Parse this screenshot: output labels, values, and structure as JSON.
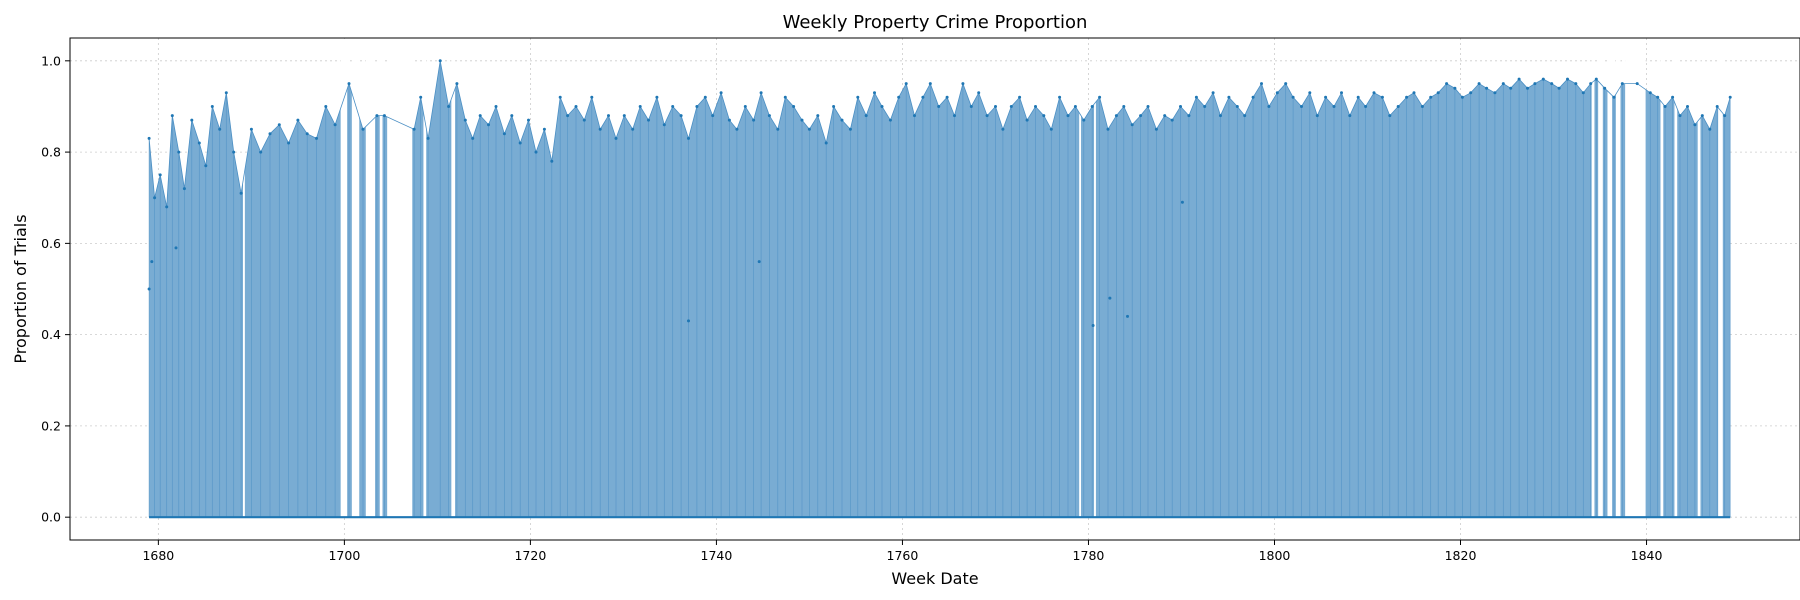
{
  "chart_data": {
    "type": "area",
    "title": "Weekly Property Crime Proportion",
    "xlabel": "Week Date",
    "ylabel": "Proportion of Trials",
    "xlim": [
      1670.5,
      1856.5
    ],
    "ylim": [
      -0.05,
      1.05
    ],
    "xticks": [
      "1680",
      "1700",
      "1720",
      "1740",
      "1760",
      "1780",
      "1800",
      "1820",
      "1840"
    ],
    "yticks": [
      "0.0",
      "0.2",
      "0.4",
      "0.6",
      "0.8",
      "1.0"
    ],
    "grid": true,
    "colors": {
      "fill": "#79acd3",
      "line": "#4b8fc4",
      "marker": "#1f77b4"
    },
    "series": [
      {
        "x": [
          1679.0,
          1679.6,
          1680.2,
          1680.9,
          1681.5,
          1682.2,
          1682.8,
          1683.6,
          1684.4,
          1685.1,
          1685.8,
          1686.6,
          1687.3,
          1688.1,
          1688.9,
          1690.0,
          1691.0,
          1692.0,
          1693.0,
          1694.0,
          1695.0,
          1696.0,
          1697.0,
          1698.0,
          1699.0,
          1700.5,
          1702.0,
          1703.5,
          1704.3,
          1707.5,
          1708.2,
          1709.0,
          1710.3,
          1711.2,
          1712.1,
          1713.0,
          1713.8,
          1714.6,
          1715.5,
          1716.3,
          1717.2,
          1718.0,
          1718.9,
          1719.8,
          1720.6,
          1721.5,
          1722.3,
          1723.2,
          1724.0,
          1724.9,
          1725.8,
          1726.6,
          1727.5,
          1728.4,
          1729.2,
          1730.1,
          1731.0,
          1731.8,
          1732.7,
          1733.6,
          1734.4,
          1735.3,
          1736.2,
          1737.0,
          1737.9,
          1738.8,
          1739.6,
          1740.5,
          1741.4,
          1742.2,
          1743.1,
          1744.0,
          1744.8,
          1745.7,
          1746.6,
          1747.4,
          1748.3,
          1749.2,
          1750.0,
          1750.9,
          1751.8,
          1752.6,
          1753.5,
          1754.4,
          1755.2,
          1756.1,
          1757.0,
          1757.8,
          1758.7,
          1759.6,
          1760.4,
          1761.3,
          1762.2,
          1763.0,
          1763.9,
          1764.8,
          1765.6,
          1766.5,
          1767.4,
          1768.2,
          1769.1,
          1770.0,
          1770.8,
          1771.7,
          1772.6,
          1773.4,
          1774.3,
          1775.2,
          1776.0,
          1776.9,
          1777.8,
          1778.6,
          1779.5,
          1780.4,
          1781.2,
          1782.1,
          1783.0,
          1783.8,
          1784.7,
          1785.6,
          1786.4,
          1787.3,
          1788.2,
          1789.0,
          1789.9,
          1790.8,
          1791.6,
          1792.5,
          1793.4,
          1794.2,
          1795.1,
          1796.0,
          1796.8,
          1797.7,
          1798.6,
          1799.4,
          1800.3,
          1801.2,
          1802.0,
          1802.9,
          1803.8,
          1804.6,
          1805.5,
          1806.4,
          1807.2,
          1808.1,
          1809.0,
          1809.8,
          1810.7,
          1811.6,
          1812.4,
          1813.3,
          1814.2,
          1815.0,
          1815.9,
          1816.8,
          1817.6,
          1818.5,
          1819.4,
          1820.2,
          1821.1,
          1822.0,
          1822.8,
          1823.7,
          1824.6,
          1825.4,
          1826.3,
          1827.2,
          1828.0,
          1828.9,
          1829.8,
          1830.6,
          1831.5,
          1832.4,
          1833.2,
          1834.0,
          1834.6,
          1835.5,
          1836.5,
          1837.4,
          1839.0,
          1840.4,
          1841.2,
          1842.0,
          1842.8,
          1843.6,
          1844.4,
          1845.2,
          1846.0,
          1846.8,
          1847.6,
          1848.4,
          1849.0
        ],
        "y": [
          0.83,
          0.7,
          0.75,
          0.68,
          0.88,
          0.8,
          0.72,
          0.87,
          0.82,
          0.77,
          0.9,
          0.85,
          0.93,
          0.8,
          0.71,
          0.85,
          0.8,
          0.84,
          0.86,
          0.82,
          0.87,
          0.84,
          0.83,
          0.9,
          0.86,
          0.95,
          0.85,
          0.88,
          0.88,
          0.85,
          0.92,
          0.83,
          1.0,
          0.9,
          0.95,
          0.87,
          0.83,
          0.88,
          0.86,
          0.9,
          0.84,
          0.88,
          0.82,
          0.87,
          0.8,
          0.85,
          0.78,
          0.92,
          0.88,
          0.9,
          0.87,
          0.92,
          0.85,
          0.88,
          0.83,
          0.88,
          0.85,
          0.9,
          0.87,
          0.92,
          0.86,
          0.9,
          0.88,
          0.83,
          0.9,
          0.92,
          0.88,
          0.93,
          0.87,
          0.85,
          0.9,
          0.87,
          0.93,
          0.88,
          0.85,
          0.92,
          0.9,
          0.87,
          0.85,
          0.88,
          0.82,
          0.9,
          0.87,
          0.85,
          0.92,
          0.88,
          0.93,
          0.9,
          0.87,
          0.92,
          0.95,
          0.88,
          0.92,
          0.95,
          0.9,
          0.92,
          0.88,
          0.95,
          0.9,
          0.93,
          0.88,
          0.9,
          0.85,
          0.9,
          0.92,
          0.87,
          0.9,
          0.88,
          0.85,
          0.92,
          0.88,
          0.9,
          0.87,
          0.9,
          0.92,
          0.85,
          0.88,
          0.9,
          0.86,
          0.88,
          0.9,
          0.85,
          0.88,
          0.87,
          0.9,
          0.88,
          0.92,
          0.9,
          0.93,
          0.88,
          0.92,
          0.9,
          0.88,
          0.92,
          0.95,
          0.9,
          0.93,
          0.95,
          0.92,
          0.9,
          0.93,
          0.88,
          0.92,
          0.9,
          0.93,
          0.88,
          0.92,
          0.9,
          0.93,
          0.92,
          0.88,
          0.9,
          0.92,
          0.93,
          0.9,
          0.92,
          0.93,
          0.95,
          0.94,
          0.92,
          0.93,
          0.95,
          0.94,
          0.93,
          0.95,
          0.94,
          0.96,
          0.94,
          0.95,
          0.96,
          0.95,
          0.94,
          0.96,
          0.95,
          0.93,
          0.95,
          0.96,
          0.94,
          0.92,
          0.95,
          0.95,
          0.93,
          0.92,
          0.9,
          0.92,
          0.88,
          0.9,
          0.86,
          0.88,
          0.85,
          0.9,
          0.88,
          0.92
        ]
      }
    ],
    "gaps": [
      [
        1689.1,
        1689.3
      ],
      [
        1699.6,
        1700.3
      ],
      [
        1700.8,
        1701.6
      ],
      [
        1702.3,
        1703.3
      ],
      [
        1703.8,
        1704.1
      ],
      [
        1704.6,
        1707.3
      ],
      [
        1708.5,
        1708.8
      ],
      [
        1711.5,
        1711.9
      ],
      [
        1779.0,
        1779.2
      ],
      [
        1780.6,
        1780.8
      ],
      [
        1834.1,
        1834.4
      ],
      [
        1834.8,
        1835.3
      ],
      [
        1835.8,
        1836.3
      ],
      [
        1836.7,
        1837.2
      ],
      [
        1837.7,
        1839.9
      ],
      [
        1841.5,
        1841.8
      ],
      [
        1843.0,
        1843.3
      ],
      [
        1845.5,
        1845.8
      ],
      [
        1847.7,
        1848.2
      ]
    ],
    "outliers": [
      {
        "x": 1679.0,
        "y": 0.5
      },
      {
        "x": 1679.3,
        "y": 0.56
      },
      {
        "x": 1681.9,
        "y": 0.59
      },
      {
        "x": 1737.0,
        "y": 0.43
      },
      {
        "x": 1744.6,
        "y": 0.56
      },
      {
        "x": 1780.5,
        "y": 0.42
      },
      {
        "x": 1782.3,
        "y": 0.48
      },
      {
        "x": 1784.2,
        "y": 0.44
      },
      {
        "x": 1790.1,
        "y": 0.69
      }
    ]
  }
}
